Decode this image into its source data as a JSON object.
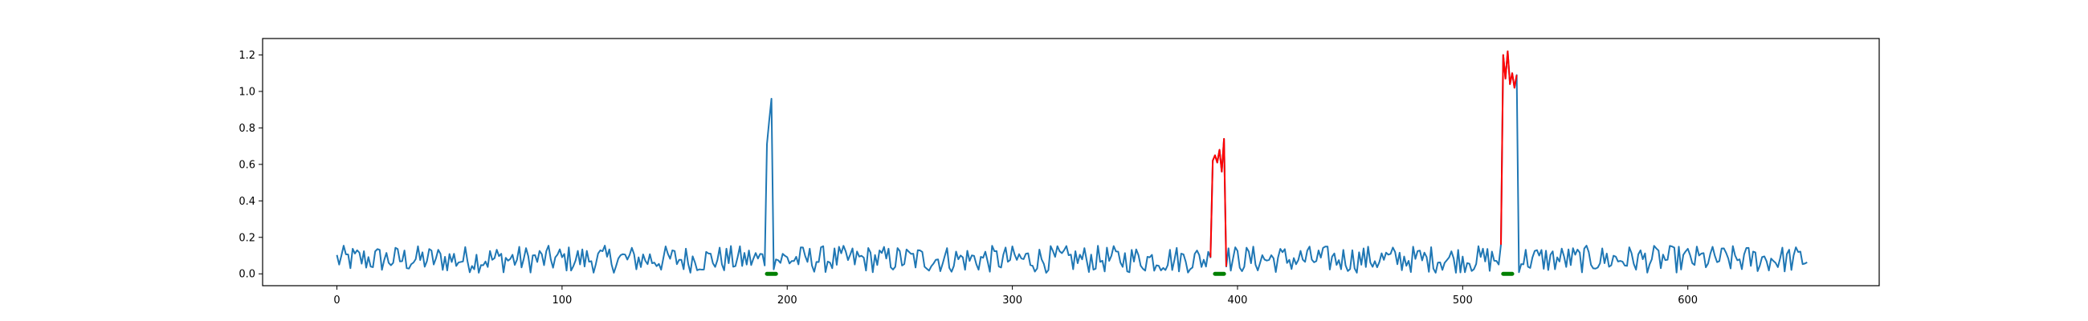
{
  "chart_data": {
    "type": "line",
    "title": "",
    "xlabel": "",
    "ylabel": "",
    "xlim": [
      -33,
      685
    ],
    "ylim": [
      -0.065,
      1.29
    ],
    "grid": false,
    "legend": "none",
    "xticks": [
      0,
      100,
      200,
      300,
      400,
      500,
      600
    ],
    "xtick_labels": [
      "0",
      "100",
      "200",
      "300",
      "400",
      "500",
      "600"
    ],
    "yticks": [
      0.0,
      0.2,
      0.4,
      0.6,
      0.8,
      1.0,
      1.2
    ],
    "ytick_labels": [
      "0.0",
      "0.2",
      "0.4",
      "0.6",
      "0.8",
      "1.0",
      "1.2"
    ],
    "n_points": 654,
    "baseline": {
      "mean": 0.08,
      "amplitude": 0.075
    },
    "series": [
      {
        "color": "#1f77b4",
        "role": "signal",
        "spikes": [
          {
            "x": [
              191,
              192,
              193
            ],
            "y": [
              0.71,
              0.84,
              0.96
            ]
          }
        ]
      },
      {
        "color": "#ff0000",
        "role": "highlighted anomaly segments",
        "segments": [
          {
            "x": [
              388,
              389,
              390,
              391,
              392,
              393,
              394,
              395
            ],
            "y": [
              0.09,
              0.62,
              0.65,
              0.61,
              0.68,
              0.56,
              0.74,
              0.04
            ]
          },
          {
            "x": [
              517,
              518,
              519,
              520,
              521,
              522,
              523,
              524
            ],
            "y": [
              0.16,
              1.2,
              1.07,
              1.22,
              1.04,
              1.1,
              1.02,
              1.09
            ]
          }
        ]
      }
    ],
    "markers": {
      "color": "#008000",
      "y": 0.0,
      "ranges": [
        [
          191,
          195
        ],
        [
          390,
          394
        ],
        [
          518,
          522
        ]
      ]
    }
  }
}
